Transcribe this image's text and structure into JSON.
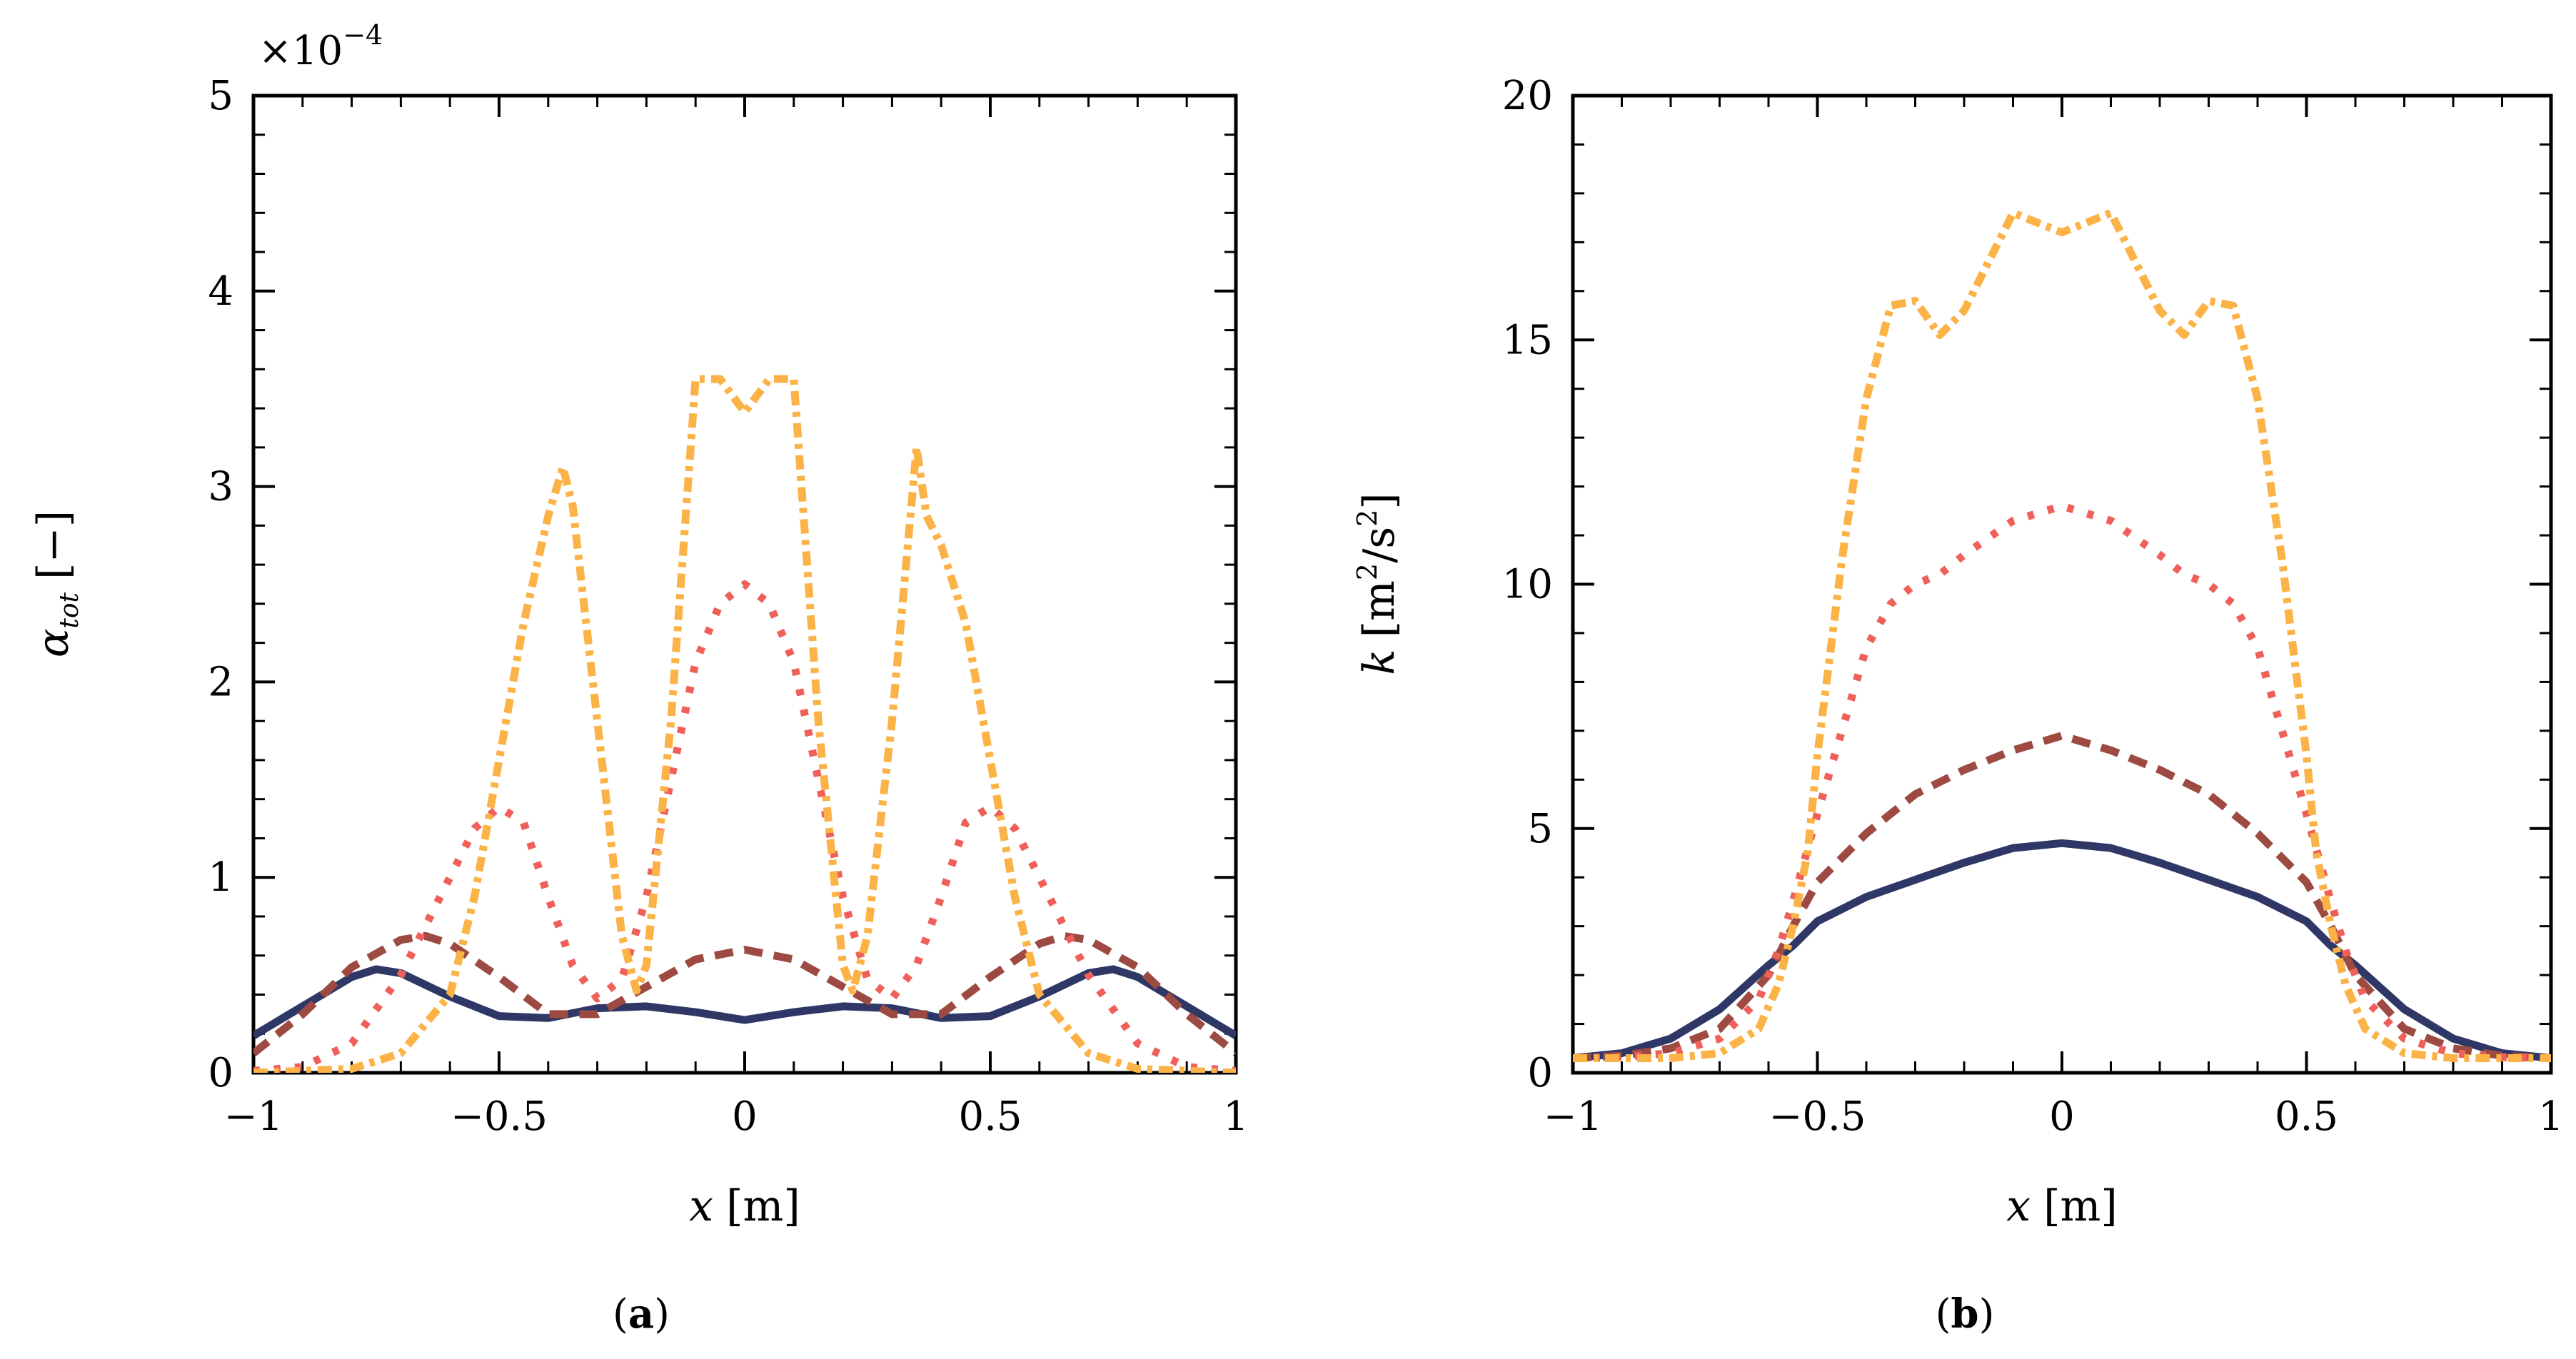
{
  "chart_data": [
    {
      "type": "line",
      "panel_label": "a",
      "xlabel": "x",
      "xlabel_unit": "[m]",
      "ylabel_symbol": "α",
      "ylabel_subscript": "tot",
      "ylabel_unit": "[−]",
      "exponent_prefix": "×10",
      "exponent": "−4",
      "xlim": [
        -1,
        1
      ],
      "ylim": [
        0,
        5
      ],
      "xticks": [
        -1,
        -0.5,
        0,
        0.5,
        1
      ],
      "xtick_labels": [
        "−1",
        "−0.5",
        "0",
        "0.5",
        "1"
      ],
      "yticks": [
        0,
        1,
        2,
        3,
        4,
        5
      ],
      "ytick_labels": [
        "0",
        "1",
        "2",
        "3",
        "4",
        "5"
      ],
      "series": [
        {
          "name": "solid navy",
          "color": "#2e3766",
          "style": "solid",
          "x": [
            -1,
            -0.9,
            -0.8,
            -0.75,
            -0.7,
            -0.6,
            -0.5,
            -0.4,
            -0.3,
            -0.2,
            -0.1,
            0,
            0.1,
            0.2,
            0.3,
            0.4,
            0.5,
            0.6,
            0.7,
            0.75,
            0.8,
            0.9,
            1
          ],
          "y": [
            0.19,
            0.34,
            0.49,
            0.53,
            0.51,
            0.39,
            0.29,
            0.28,
            0.33,
            0.34,
            0.31,
            0.27,
            0.31,
            0.34,
            0.33,
            0.28,
            0.29,
            0.39,
            0.51,
            0.53,
            0.49,
            0.34,
            0.19
          ]
        },
        {
          "name": "dashed brown",
          "color": "#9c4a42",
          "style": "dashed",
          "x": [
            -1,
            -0.9,
            -0.8,
            -0.7,
            -0.65,
            -0.6,
            -0.5,
            -0.4,
            -0.3,
            -0.2,
            -0.1,
            0,
            0.1,
            0.2,
            0.3,
            0.4,
            0.5,
            0.6,
            0.65,
            0.7,
            0.8,
            0.9,
            1
          ],
          "y": [
            0.1,
            0.3,
            0.54,
            0.68,
            0.7,
            0.66,
            0.49,
            0.3,
            0.3,
            0.44,
            0.58,
            0.63,
            0.58,
            0.44,
            0.3,
            0.3,
            0.49,
            0.66,
            0.7,
            0.68,
            0.54,
            0.3,
            0.1
          ]
        },
        {
          "name": "dotted red",
          "color": "#f0605a",
          "style": "dotted",
          "x": [
            -1,
            -0.9,
            -0.8,
            -0.7,
            -0.6,
            -0.55,
            -0.5,
            -0.45,
            -0.4,
            -0.35,
            -0.3,
            -0.25,
            -0.2,
            -0.15,
            -0.1,
            -0.05,
            0,
            0.05,
            0.1,
            0.15,
            0.2,
            0.25,
            0.3,
            0.35,
            0.4,
            0.45,
            0.5,
            0.55,
            0.6,
            0.7,
            0.8,
            0.9,
            1
          ],
          "y": [
            0.01,
            0.03,
            0.15,
            0.5,
            1.0,
            1.25,
            1.36,
            1.28,
            0.9,
            0.55,
            0.38,
            0.48,
            0.9,
            1.5,
            2.1,
            2.4,
            2.5,
            2.4,
            2.1,
            1.5,
            0.9,
            0.48,
            0.38,
            0.55,
            0.9,
            1.28,
            1.36,
            1.25,
            1.0,
            0.5,
            0.15,
            0.03,
            0.01
          ]
        },
        {
          "name": "dash-dot orange",
          "color": "#fbb347",
          "style": "dashdot",
          "x": [
            -1,
            -0.8,
            -0.7,
            -0.6,
            -0.55,
            -0.5,
            -0.45,
            -0.4,
            -0.37,
            -0.35,
            -0.3,
            -0.25,
            -0.22,
            -0.2,
            -0.15,
            -0.1,
            -0.05,
            0,
            0.05,
            0.1,
            0.15,
            0.2,
            0.22,
            0.25,
            0.3,
            0.35,
            0.37,
            0.4,
            0.45,
            0.5,
            0.55,
            0.6,
            0.7,
            0.8,
            1
          ],
          "y": [
            0.0,
            0.02,
            0.1,
            0.4,
            0.9,
            1.6,
            2.3,
            2.85,
            3.1,
            2.9,
            1.8,
            0.7,
            0.42,
            0.55,
            1.8,
            3.55,
            3.55,
            3.38,
            3.55,
            3.55,
            1.8,
            0.55,
            0.42,
            0.7,
            1.8,
            3.2,
            2.85,
            2.7,
            2.3,
            1.6,
            0.9,
            0.4,
            0.1,
            0.02,
            0.0
          ]
        }
      ]
    },
    {
      "type": "line",
      "panel_label": "b",
      "xlabel": "x",
      "xlabel_unit": "[m]",
      "ylabel_symbol": "k",
      "ylabel_unit_pre": "[m",
      "ylabel_unit_sup1": "2",
      "ylabel_unit_mid": "/s",
      "ylabel_unit_sup2": "2",
      "ylabel_unit_post": "]",
      "xlim": [
        -1,
        1
      ],
      "ylim": [
        0,
        20
      ],
      "xticks": [
        -1,
        -0.5,
        0,
        0.5,
        1
      ],
      "xtick_labels": [
        "−1",
        "−0.5",
        "0",
        "0.5",
        "1"
      ],
      "yticks": [
        0,
        5,
        10,
        15,
        20
      ],
      "ytick_labels": [
        "0",
        "5",
        "10",
        "15",
        "20"
      ],
      "series": [
        {
          "name": "solid navy",
          "color": "#2e3766",
          "style": "solid",
          "x": [
            -1,
            -0.9,
            -0.8,
            -0.7,
            -0.6,
            -0.55,
            -0.5,
            -0.4,
            -0.3,
            -0.2,
            -0.1,
            0,
            0.1,
            0.2,
            0.3,
            0.4,
            0.5,
            0.55,
            0.6,
            0.7,
            0.8,
            0.9,
            1
          ],
          "y": [
            0.3,
            0.4,
            0.7,
            1.3,
            2.2,
            2.6,
            3.1,
            3.6,
            3.95,
            4.3,
            4.6,
            4.7,
            4.6,
            4.3,
            3.95,
            3.6,
            3.1,
            2.6,
            2.2,
            1.3,
            0.7,
            0.4,
            0.3
          ]
        },
        {
          "name": "dashed brown",
          "color": "#9c4a42",
          "style": "dashed",
          "x": [
            -1,
            -0.9,
            -0.8,
            -0.7,
            -0.6,
            -0.55,
            -0.5,
            -0.4,
            -0.3,
            -0.2,
            -0.1,
            0,
            0.1,
            0.2,
            0.3,
            0.4,
            0.5,
            0.55,
            0.6,
            0.7,
            0.8,
            0.9,
            1
          ],
          "y": [
            0.3,
            0.35,
            0.5,
            0.9,
            2.0,
            3.0,
            3.9,
            4.9,
            5.7,
            6.2,
            6.6,
            6.9,
            6.6,
            6.2,
            5.7,
            4.9,
            3.9,
            3.0,
            2.0,
            0.9,
            0.5,
            0.35,
            0.3
          ]
        },
        {
          "name": "dotted red",
          "color": "#f0605a",
          "style": "dotted",
          "x": [
            -1,
            -0.9,
            -0.8,
            -0.7,
            -0.62,
            -0.58,
            -0.55,
            -0.5,
            -0.45,
            -0.4,
            -0.35,
            -0.3,
            -0.25,
            -0.2,
            -0.1,
            0,
            0.1,
            0.2,
            0.25,
            0.3,
            0.35,
            0.4,
            0.45,
            0.5,
            0.55,
            0.58,
            0.62,
            0.7,
            0.8,
            0.9,
            1
          ],
          "y": [
            0.3,
            0.32,
            0.4,
            0.7,
            1.5,
            2.5,
            3.5,
            5.3,
            7.0,
            8.7,
            9.6,
            10.0,
            10.2,
            10.6,
            11.3,
            11.6,
            11.3,
            10.6,
            10.2,
            10.0,
            9.6,
            8.7,
            7.0,
            5.3,
            3.5,
            2.5,
            1.5,
            0.7,
            0.4,
            0.32,
            0.3
          ]
        },
        {
          "name": "dash-dot orange",
          "color": "#fbb347",
          "style": "dashdot",
          "x": [
            -1,
            -0.8,
            -0.7,
            -0.62,
            -0.58,
            -0.55,
            -0.52,
            -0.5,
            -0.45,
            -0.4,
            -0.35,
            -0.3,
            -0.25,
            -0.2,
            -0.1,
            0,
            0.1,
            0.2,
            0.25,
            0.3,
            0.35,
            0.4,
            0.45,
            0.5,
            0.52,
            0.55,
            0.58,
            0.62,
            0.7,
            0.8,
            1
          ],
          "y": [
            0.3,
            0.3,
            0.4,
            0.9,
            1.8,
            3.0,
            4.5,
            6.5,
            10.5,
            13.8,
            15.7,
            15.8,
            15.1,
            15.6,
            17.6,
            17.2,
            17.6,
            15.6,
            15.1,
            15.8,
            15.7,
            13.8,
            10.5,
            6.5,
            4.5,
            3.0,
            1.8,
            0.9,
            0.4,
            0.3,
            0.3
          ]
        }
      ]
    }
  ]
}
